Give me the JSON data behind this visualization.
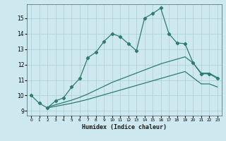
{
  "xlabel": "Humidex (Indice chaleur)",
  "background_color": "#cde8ee",
  "grid_color": "#aacdd6",
  "line_color": "#2e7d6e",
  "xlim": [
    -0.5,
    23.5
  ],
  "ylim": [
    8.7,
    15.9
  ],
  "yticks": [
    9,
    10,
    11,
    12,
    13,
    14,
    15
  ],
  "xticks": [
    0,
    1,
    2,
    3,
    4,
    5,
    6,
    7,
    8,
    9,
    10,
    11,
    12,
    13,
    14,
    15,
    16,
    17,
    18,
    19,
    20,
    21,
    22,
    23
  ],
  "series1_x": [
    0,
    1,
    2,
    3,
    4,
    5,
    6,
    7,
    8,
    9,
    10,
    11,
    12,
    13,
    14,
    15,
    16,
    17,
    18,
    19,
    20,
    21,
    22,
    23
  ],
  "series1_y": [
    10.0,
    9.5,
    9.2,
    9.65,
    9.85,
    10.55,
    11.1,
    12.45,
    12.8,
    13.5,
    14.0,
    13.8,
    13.35,
    12.9,
    15.0,
    15.3,
    15.65,
    14.0,
    13.4,
    13.35,
    12.1,
    11.4,
    11.4,
    11.1
  ],
  "series2_x": [
    2,
    3,
    4,
    5,
    6,
    7,
    8,
    9,
    10,
    11,
    12,
    13,
    14,
    15,
    16,
    17,
    18,
    19,
    20,
    21,
    22,
    23
  ],
  "series2_y": [
    9.25,
    9.4,
    9.55,
    9.7,
    9.88,
    10.1,
    10.35,
    10.6,
    10.85,
    11.05,
    11.25,
    11.45,
    11.65,
    11.85,
    12.05,
    12.2,
    12.35,
    12.5,
    12.1,
    11.45,
    11.45,
    11.15
  ],
  "series3_x": [
    2,
    3,
    4,
    5,
    6,
    7,
    8,
    9,
    10,
    11,
    12,
    13,
    14,
    15,
    16,
    17,
    18,
    19,
    20,
    21,
    22,
    23
  ],
  "series3_y": [
    9.2,
    9.3,
    9.4,
    9.5,
    9.62,
    9.75,
    9.9,
    10.05,
    10.2,
    10.35,
    10.5,
    10.65,
    10.8,
    10.95,
    11.1,
    11.25,
    11.4,
    11.55,
    11.15,
    10.75,
    10.75,
    10.55
  ]
}
